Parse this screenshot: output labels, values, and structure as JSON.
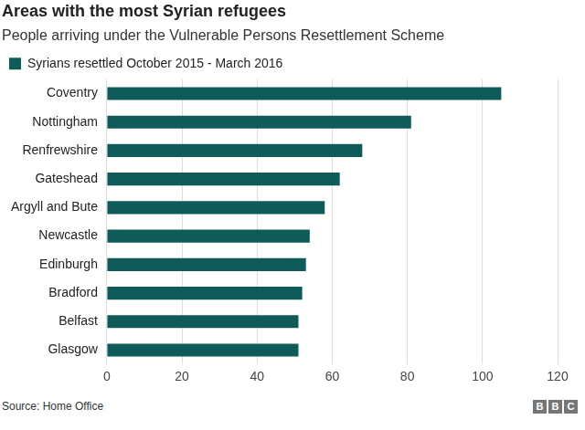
{
  "chart_data": {
    "type": "bar",
    "title": "Areas with the most Syrian refugees",
    "subtitle": "People arriving under the Vulnerable Persons Resettlement Scheme",
    "categories": [
      "Coventry",
      "Nottingham",
      "Renfrewshire",
      "Gateshead",
      "Argyll and Bute",
      "Newcastle",
      "Edinburgh",
      "Bradford",
      "Belfast",
      "Glasgow"
    ],
    "series": [
      {
        "name": "Syrians resettled October 2015 - March 2016",
        "color": "#0f5b5a",
        "values": [
          105,
          81,
          68,
          62,
          58,
          54,
          53,
          52,
          51,
          51
        ]
      }
    ],
    "orientation": "horizontal",
    "xlim": [
      0,
      120
    ],
    "xticks": [
      0,
      20,
      40,
      60,
      80,
      100,
      120
    ],
    "grid": true,
    "legend": "top-left",
    "source": "Source: Home Office",
    "credit": "BBC"
  }
}
